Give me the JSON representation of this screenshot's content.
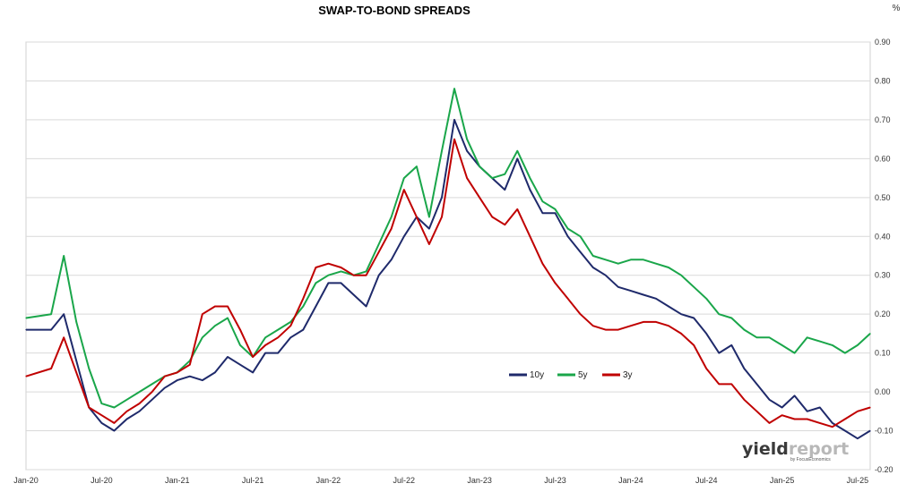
{
  "chart_data": {
    "type": "line",
    "title": "SWAP-TO-BOND SPREADS",
    "y_unit": "%",
    "ylim": [
      -0.2,
      0.9
    ],
    "y_ticks": [
      "0.90",
      "0.80",
      "0.70",
      "0.60",
      "0.50",
      "0.40",
      "0.30",
      "0.20",
      "0.10",
      "0.00",
      "-0.10",
      "-0.20"
    ],
    "x_ticks": [
      "Jan-20",
      "Jul-20",
      "Jan-21",
      "Jul-21",
      "Jan-22",
      "Jul-22",
      "Jan-23",
      "Jul-23",
      "Jan-24",
      "Jul-24",
      "Jan-25",
      "Jul-25"
    ],
    "x_range": [
      "2020-01",
      "2025-08"
    ],
    "grid": true,
    "legend_position": "center-right",
    "series": [
      {
        "name": "10y",
        "color": "#1f2a6b",
        "x": [
          "2020-01",
          "2020-03",
          "2020-04",
          "2020-05",
          "2020-06",
          "2020-07",
          "2020-08",
          "2020-09",
          "2020-10",
          "2020-11",
          "2020-12",
          "2021-01",
          "2021-02",
          "2021-03",
          "2021-04",
          "2021-05",
          "2021-06",
          "2021-07",
          "2021-08",
          "2021-09",
          "2021-10",
          "2021-11",
          "2021-12",
          "2022-01",
          "2022-02",
          "2022-03",
          "2022-04",
          "2022-05",
          "2022-06",
          "2022-07",
          "2022-08",
          "2022-09",
          "2022-10",
          "2022-11",
          "2022-12",
          "2023-01",
          "2023-02",
          "2023-03",
          "2023-04",
          "2023-05",
          "2023-06",
          "2023-07",
          "2023-08",
          "2023-09",
          "2023-10",
          "2023-11",
          "2023-12",
          "2024-01",
          "2024-02",
          "2024-03",
          "2024-04",
          "2024-05",
          "2024-06",
          "2024-07",
          "2024-08",
          "2024-09",
          "2024-10",
          "2024-11",
          "2024-12",
          "2025-01",
          "2025-02",
          "2025-03",
          "2025-04",
          "2025-05",
          "2025-06",
          "2025-07",
          "2025-08"
        ],
        "values": [
          0.16,
          0.16,
          0.2,
          0.08,
          -0.04,
          -0.08,
          -0.1,
          -0.07,
          -0.05,
          -0.02,
          0.01,
          0.03,
          0.04,
          0.03,
          0.05,
          0.09,
          0.07,
          0.05,
          0.1,
          0.1,
          0.14,
          0.16,
          0.22,
          0.28,
          0.28,
          0.25,
          0.22,
          0.3,
          0.34,
          0.4,
          0.45,
          0.42,
          0.5,
          0.7,
          0.62,
          0.58,
          0.55,
          0.52,
          0.6,
          0.52,
          0.46,
          0.46,
          0.4,
          0.36,
          0.32,
          0.3,
          0.27,
          0.26,
          0.25,
          0.24,
          0.22,
          0.2,
          0.19,
          0.15,
          0.1,
          0.12,
          0.06,
          0.02,
          -0.02,
          -0.04,
          -0.01,
          -0.05,
          -0.04,
          -0.08,
          -0.1,
          -0.12,
          -0.1
        ]
      },
      {
        "name": "5y",
        "color": "#1aa64a",
        "x": [
          "2020-01",
          "2020-03",
          "2020-04",
          "2020-05",
          "2020-06",
          "2020-07",
          "2020-08",
          "2020-09",
          "2020-10",
          "2020-11",
          "2020-12",
          "2021-01",
          "2021-02",
          "2021-03",
          "2021-04",
          "2021-05",
          "2021-06",
          "2021-07",
          "2021-08",
          "2021-09",
          "2021-10",
          "2021-11",
          "2021-12",
          "2022-01",
          "2022-02",
          "2022-03",
          "2022-04",
          "2022-05",
          "2022-06",
          "2022-07",
          "2022-08",
          "2022-09",
          "2022-10",
          "2022-11",
          "2022-12",
          "2023-01",
          "2023-02",
          "2023-03",
          "2023-04",
          "2023-05",
          "2023-06",
          "2023-07",
          "2023-08",
          "2023-09",
          "2023-10",
          "2023-11",
          "2023-12",
          "2024-01",
          "2024-02",
          "2024-03",
          "2024-04",
          "2024-05",
          "2024-06",
          "2024-07",
          "2024-08",
          "2024-09",
          "2024-10",
          "2024-11",
          "2024-12",
          "2025-01",
          "2025-02",
          "2025-03",
          "2025-04",
          "2025-05",
          "2025-06",
          "2025-07",
          "2025-08"
        ],
        "values": [
          0.19,
          0.2,
          0.35,
          0.18,
          0.06,
          -0.03,
          -0.04,
          -0.02,
          0.0,
          0.02,
          0.04,
          0.05,
          0.08,
          0.14,
          0.17,
          0.19,
          0.12,
          0.09,
          0.14,
          0.16,
          0.18,
          0.22,
          0.28,
          0.3,
          0.31,
          0.3,
          0.31,
          0.38,
          0.45,
          0.55,
          0.58,
          0.45,
          0.62,
          0.78,
          0.65,
          0.58,
          0.55,
          0.56,
          0.62,
          0.55,
          0.49,
          0.47,
          0.42,
          0.4,
          0.35,
          0.34,
          0.33,
          0.34,
          0.34,
          0.33,
          0.32,
          0.3,
          0.27,
          0.24,
          0.2,
          0.19,
          0.16,
          0.14,
          0.14,
          0.12,
          0.1,
          0.14,
          0.13,
          0.12,
          0.1,
          0.12,
          0.15
        ]
      },
      {
        "name": "3y",
        "color": "#c00000",
        "x": [
          "2020-01",
          "2020-03",
          "2020-04",
          "2020-05",
          "2020-06",
          "2020-07",
          "2020-08",
          "2020-09",
          "2020-10",
          "2020-11",
          "2020-12",
          "2021-01",
          "2021-02",
          "2021-03",
          "2021-04",
          "2021-05",
          "2021-06",
          "2021-07",
          "2021-08",
          "2021-09",
          "2021-10",
          "2021-11",
          "2021-12",
          "2022-01",
          "2022-02",
          "2022-03",
          "2022-04",
          "2022-05",
          "2022-06",
          "2022-07",
          "2022-08",
          "2022-09",
          "2022-10",
          "2022-11",
          "2022-12",
          "2023-01",
          "2023-02",
          "2023-03",
          "2023-04",
          "2023-05",
          "2023-06",
          "2023-07",
          "2023-08",
          "2023-09",
          "2023-10",
          "2023-11",
          "2023-12",
          "2024-01",
          "2024-02",
          "2024-03",
          "2024-04",
          "2024-05",
          "2024-06",
          "2024-07",
          "2024-08",
          "2024-09",
          "2024-10",
          "2024-11",
          "2024-12",
          "2025-01",
          "2025-02",
          "2025-03",
          "2025-04",
          "2025-05",
          "2025-06",
          "2025-07",
          "2025-08"
        ],
        "values": [
          0.04,
          0.06,
          0.14,
          0.05,
          -0.04,
          -0.06,
          -0.08,
          -0.05,
          -0.03,
          0.0,
          0.04,
          0.05,
          0.07,
          0.2,
          0.22,
          0.22,
          0.16,
          0.09,
          0.12,
          0.14,
          0.17,
          0.24,
          0.32,
          0.33,
          0.32,
          0.3,
          0.3,
          0.36,
          0.42,
          0.52,
          0.45,
          0.38,
          0.45,
          0.65,
          0.55,
          0.5,
          0.45,
          0.43,
          0.47,
          0.4,
          0.33,
          0.28,
          0.24,
          0.2,
          0.17,
          0.16,
          0.16,
          0.17,
          0.18,
          0.18,
          0.17,
          0.15,
          0.12,
          0.06,
          0.02,
          0.02,
          -0.02,
          -0.05,
          -0.08,
          -0.06,
          -0.07,
          -0.07,
          -0.08,
          -0.09,
          -0.07,
          -0.05,
          -0.04
        ]
      }
    ]
  },
  "logo": {
    "main": "yield",
    "light": "report",
    "sub": "by FocusEconomics"
  }
}
